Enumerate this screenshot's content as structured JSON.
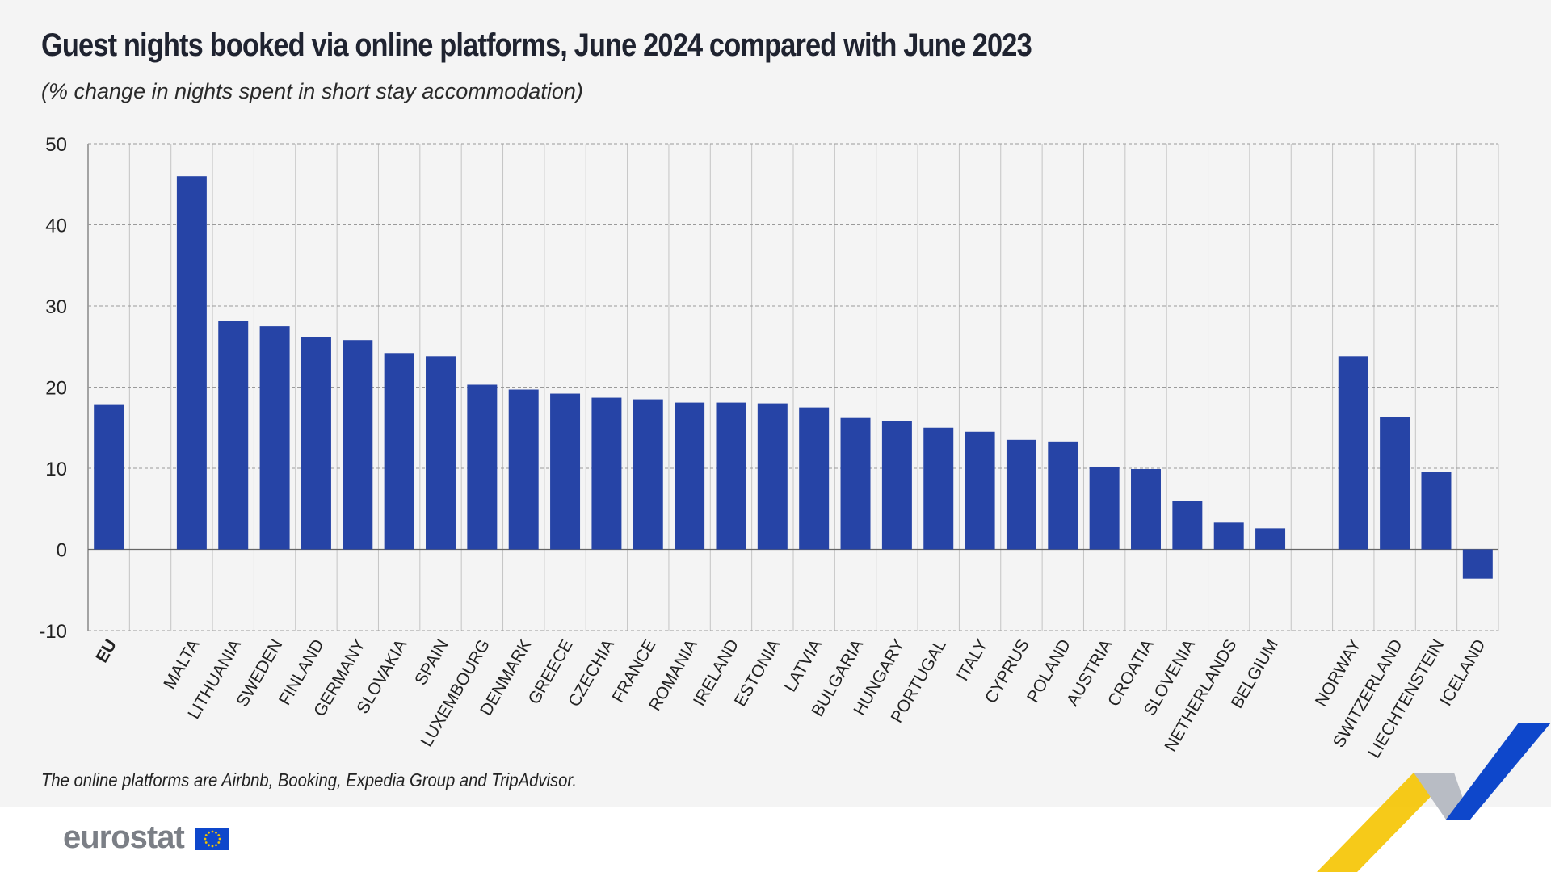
{
  "title": "Guest nights booked via online platforms, June 2024 compared with June 2023",
  "subtitle": "(% change in nights spent in short stay accommodation)",
  "note": "The online platforms are Airbnb, Booking, Expedia Group and TripAdvisor.",
  "logo": "eurostat",
  "colors": {
    "bar": "#2644a6",
    "background": "#f4f4f4",
    "accent_yellow": "#f5c400",
    "accent_blue": "#0e47cb"
  },
  "chart_data": {
    "type": "bar",
    "title": "Guest nights booked via online platforms, June 2024 compared with June 2023",
    "ylabel": "",
    "xlabel": "",
    "ylim": [
      -10,
      50
    ],
    "yticks": [
      50,
      40,
      30,
      20,
      10,
      0,
      -10
    ],
    "grid": true,
    "categories": [
      "EU",
      "",
      "MALTA",
      "LITHUANIA",
      "SWEDEN",
      "FINLAND",
      "GERMANY",
      "SLOVAKIA",
      "SPAIN",
      "LUXEMBOURG",
      "DENMARK",
      "GREECE",
      "CZECHIA",
      "FRANCE",
      "ROMANIA",
      "IRELAND",
      "ESTONIA",
      "LATVIA",
      "BULGARIA",
      "HUNGARY",
      "PORTUGAL",
      "ITALY",
      "CYPRUS",
      "POLAND",
      "AUSTRIA",
      "CROATIA",
      "SLOVENIA",
      "NETHERLANDS",
      "BELGIUM",
      "",
      "NORWAY",
      "SWITZERLAND",
      "LIECHTENSTEIN",
      "ICELAND"
    ],
    "values": [
      17.9,
      null,
      46.0,
      28.2,
      27.5,
      26.2,
      25.8,
      24.2,
      23.8,
      20.3,
      19.7,
      19.2,
      18.7,
      18.5,
      18.1,
      18.1,
      18.0,
      17.5,
      16.2,
      15.8,
      15.0,
      14.5,
      13.5,
      13.3,
      10.2,
      9.9,
      6.0,
      3.3,
      2.6,
      null,
      23.8,
      16.3,
      9.6,
      -3.6
    ]
  }
}
